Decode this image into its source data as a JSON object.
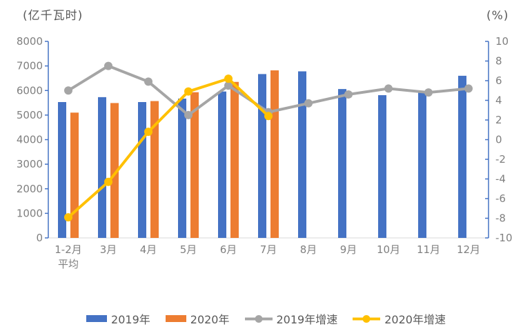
{
  "chart_data": {
    "type": "bar+line",
    "title": "",
    "categories": [
      [
        "1-2月",
        "平均"
      ],
      [
        "3月"
      ],
      [
        "4月"
      ],
      [
        "5月"
      ],
      [
        "6月"
      ],
      [
        "7月"
      ],
      [
        "8月"
      ],
      [
        "9月"
      ],
      [
        "10月"
      ],
      [
        "11月"
      ],
      [
        "12月"
      ]
    ],
    "left_axis": {
      "title": "(亿千瓦时)",
      "min": 0,
      "max": 8000,
      "tick_step": 1000,
      "tick_labels": [
        "0",
        "1000",
        "2000",
        "3000",
        "4000",
        "5000",
        "6000",
        "7000",
        "8000"
      ]
    },
    "right_axis": {
      "title": "(%)",
      "min": -10,
      "max": 10,
      "tick_step": 2,
      "tick_labels": [
        "-10",
        "-8",
        "-6",
        "-4",
        "-2",
        "0",
        "2",
        "4",
        "6",
        "8",
        "10"
      ]
    },
    "bar_series": [
      {
        "name": "2019年",
        "color": "#4472C4",
        "values": [
          5530,
          5730,
          5530,
          5670,
          5960,
          6670,
          6780,
          6060,
          5810,
          5910,
          6600
        ]
      },
      {
        "name": "2020年",
        "color": "#ED7D31",
        "values": [
          5100,
          5490,
          5570,
          5930,
          6350,
          6820,
          null,
          null,
          null,
          null,
          null
        ]
      }
    ],
    "line_series": [
      {
        "name": "2019年增速",
        "color": "#A5A5A5",
        "values": [
          5.0,
          7.5,
          5.9,
          2.5,
          5.5,
          2.8,
          3.7,
          4.6,
          5.2,
          4.8,
          5.2
        ]
      },
      {
        "name": "2020年增速",
        "color": "#FFC000",
        "values": [
          -7.9,
          -4.3,
          0.8,
          4.9,
          6.2,
          2.4,
          null,
          null,
          null,
          null,
          null
        ]
      }
    ],
    "legend_position": "bottom",
    "grid": false,
    "styles": {
      "axis_line_color": "#4472C4",
      "baseline_color": "#D9D9D9",
      "tick_label_color": "#7F7F7F",
      "title_color": "#595959",
      "legend_text_color": "#595959",
      "background": "#FFFFFF"
    }
  }
}
